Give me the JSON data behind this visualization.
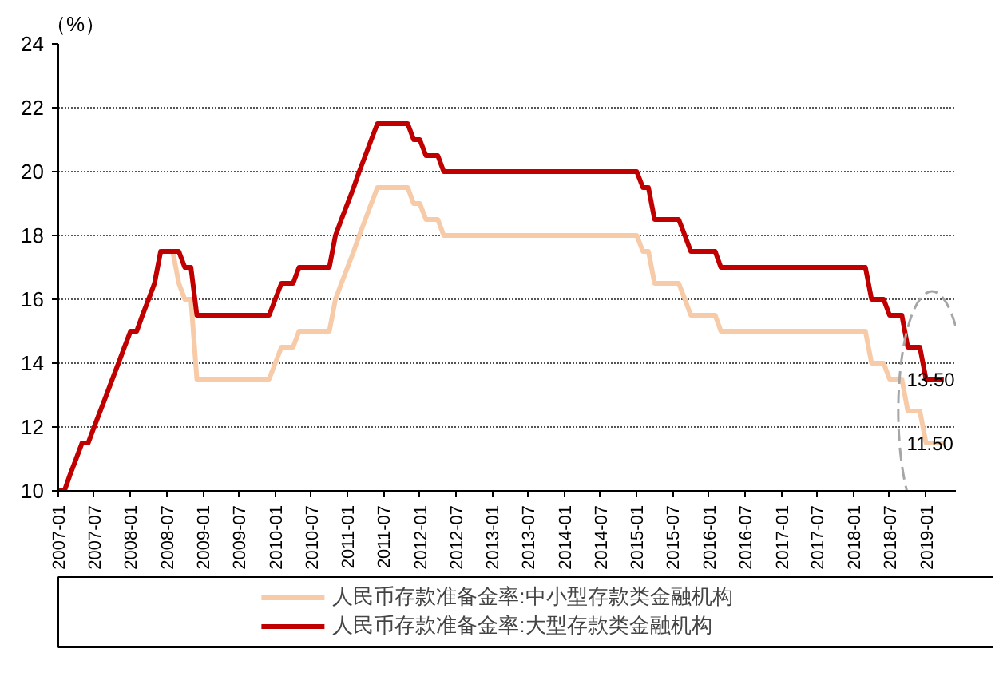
{
  "chart_data": {
    "type": "line",
    "ylabel": "（%）",
    "x": [
      "2007-01",
      "2007-02",
      "2007-03",
      "2007-04",
      "2007-05",
      "2007-06",
      "2007-07",
      "2007-08",
      "2007-09",
      "2007-10",
      "2007-11",
      "2007-12",
      "2008-01",
      "2008-02",
      "2008-03",
      "2008-04",
      "2008-05",
      "2008-06",
      "2008-07",
      "2008-08",
      "2008-09",
      "2008-10",
      "2008-11",
      "2008-12",
      "2009-01",
      "2009-02",
      "2009-03",
      "2009-04",
      "2009-05",
      "2009-06",
      "2009-07",
      "2009-08",
      "2009-09",
      "2009-10",
      "2009-11",
      "2009-12",
      "2010-01",
      "2010-02",
      "2010-03",
      "2010-04",
      "2010-05",
      "2010-06",
      "2010-07",
      "2010-08",
      "2010-09",
      "2010-10",
      "2010-11",
      "2010-12",
      "2011-01",
      "2011-02",
      "2011-03",
      "2011-04",
      "2011-05",
      "2011-06",
      "2011-07",
      "2011-08",
      "2011-09",
      "2011-10",
      "2011-11",
      "2011-12",
      "2012-01",
      "2012-02",
      "2012-03",
      "2012-04",
      "2012-05",
      "2012-06",
      "2012-07",
      "2012-08",
      "2012-09",
      "2012-10",
      "2012-11",
      "2012-12",
      "2013-01",
      "2013-02",
      "2013-03",
      "2013-04",
      "2013-05",
      "2013-06",
      "2013-07",
      "2013-08",
      "2013-09",
      "2013-10",
      "2013-11",
      "2013-12",
      "2014-01",
      "2014-02",
      "2014-03",
      "2014-04",
      "2014-05",
      "2014-06",
      "2014-07",
      "2014-08",
      "2014-09",
      "2014-10",
      "2014-11",
      "2014-12",
      "2015-01",
      "2015-02",
      "2015-03",
      "2015-04",
      "2015-05",
      "2015-06",
      "2015-07",
      "2015-08",
      "2015-09",
      "2015-10",
      "2015-11",
      "2015-12",
      "2016-01",
      "2016-02",
      "2016-03",
      "2016-04",
      "2016-05",
      "2016-06",
      "2016-07",
      "2016-08",
      "2016-09",
      "2016-10",
      "2016-11",
      "2016-12",
      "2017-01",
      "2017-02",
      "2017-03",
      "2017-04",
      "2017-05",
      "2017-06",
      "2017-07",
      "2017-08",
      "2017-09",
      "2017-10",
      "2017-11",
      "2017-12",
      "2018-01",
      "2018-02",
      "2018-03",
      "2018-04",
      "2018-05",
      "2018-06",
      "2018-07",
      "2018-08",
      "2018-09",
      "2018-10",
      "2018-11",
      "2018-12",
      "2019-01",
      "2019-02",
      "2019-03",
      "2019-04"
    ],
    "series": [
      {
        "name": "人民币存款准备金率:中小型存款类金融机构",
        "color": "#f8cba8",
        "values": [
          10,
          10,
          10.5,
          11,
          11.5,
          11.5,
          12,
          12.5,
          13,
          13.5,
          14,
          14.5,
          15,
          15,
          15.5,
          16,
          16.5,
          17.5,
          17.5,
          17.5,
          16.5,
          16,
          16,
          13.5,
          13.5,
          13.5,
          13.5,
          13.5,
          13.5,
          13.5,
          13.5,
          13.5,
          13.5,
          13.5,
          13.5,
          13.5,
          14,
          14.5,
          14.5,
          14.5,
          15,
          15,
          15,
          15,
          15,
          15,
          16,
          16.5,
          17,
          17.5,
          18,
          18.5,
          19,
          19.5,
          19.5,
          19.5,
          19.5,
          19.5,
          19.5,
          19,
          19,
          18.5,
          18.5,
          18.5,
          18,
          18,
          18,
          18,
          18,
          18,
          18,
          18,
          18,
          18,
          18,
          18,
          18,
          18,
          18,
          18,
          18,
          18,
          18,
          18,
          18,
          18,
          18,
          18,
          18,
          18,
          18,
          18,
          18,
          18,
          18,
          18,
          18,
          17.5,
          17.5,
          16.5,
          16.5,
          16.5,
          16.5,
          16.5,
          16,
          15.5,
          15.5,
          15.5,
          15.5,
          15.5,
          15,
          15,
          15,
          15,
          15,
          15,
          15,
          15,
          15,
          15,
          15,
          15,
          15,
          15,
          15,
          15,
          15,
          15,
          15,
          15,
          15,
          15,
          15,
          15,
          15,
          14,
          14,
          14,
          13.5,
          13.5,
          13.5,
          12.5,
          12.5,
          12.5,
          11.5,
          11.5,
          11.5,
          11.5
        ]
      },
      {
        "name": "人民币存款准备金率:大型存款类金融机构",
        "color": "#c00000",
        "values": [
          10,
          10,
          10.5,
          11,
          11.5,
          11.5,
          12,
          12.5,
          13,
          13.5,
          14,
          14.5,
          15,
          15,
          15.5,
          16,
          16.5,
          17.5,
          17.5,
          17.5,
          17.5,
          17,
          17,
          15.5,
          15.5,
          15.5,
          15.5,
          15.5,
          15.5,
          15.5,
          15.5,
          15.5,
          15.5,
          15.5,
          15.5,
          15.5,
          16,
          16.5,
          16.5,
          16.5,
          17,
          17,
          17,
          17,
          17,
          17,
          18,
          18.5,
          19,
          19.5,
          20,
          20.5,
          21,
          21.5,
          21.5,
          21.5,
          21.5,
          21.5,
          21.5,
          21,
          21,
          20.5,
          20.5,
          20.5,
          20,
          20,
          20,
          20,
          20,
          20,
          20,
          20,
          20,
          20,
          20,
          20,
          20,
          20,
          20,
          20,
          20,
          20,
          20,
          20,
          20,
          20,
          20,
          20,
          20,
          20,
          20,
          20,
          20,
          20,
          20,
          20,
          20,
          19.5,
          19.5,
          18.5,
          18.5,
          18.5,
          18.5,
          18.5,
          18,
          17.5,
          17.5,
          17.5,
          17.5,
          17.5,
          17,
          17,
          17,
          17,
          17,
          17,
          17,
          17,
          17,
          17,
          17,
          17,
          17,
          17,
          17,
          17,
          17,
          17,
          17,
          17,
          17,
          17,
          17,
          17,
          17,
          16,
          16,
          16,
          15.5,
          15.5,
          15.5,
          14.5,
          14.5,
          14.5,
          13.5,
          13.5,
          13.5,
          13.5
        ]
      }
    ],
    "annotations": [
      {
        "text": "13.50",
        "x": "2019-01",
        "y": 13.5
      },
      {
        "text": "11.50",
        "x": "2019-01",
        "y": 11.5
      }
    ],
    "xlim": [
      "2007-01",
      "2019-06"
    ],
    "xticks": [
      "2007-01",
      "2007-07",
      "2008-01",
      "2008-07",
      "2009-01",
      "2009-07",
      "2010-01",
      "2010-07",
      "2011-01",
      "2011-07",
      "2012-01",
      "2012-07",
      "2013-01",
      "2013-07",
      "2014-01",
      "2014-07",
      "2015-01",
      "2015-07",
      "2016-01",
      "2016-07",
      "2017-01",
      "2017-07",
      "2018-01",
      "2018-07",
      "2019-01"
    ],
    "ylim": [
      10,
      24
    ],
    "yticks": [
      10,
      12,
      14,
      16,
      18,
      20,
      22,
      24
    ],
    "grid": "y",
    "legend": "bottom",
    "line_style": "solid",
    "marker": "none"
  }
}
